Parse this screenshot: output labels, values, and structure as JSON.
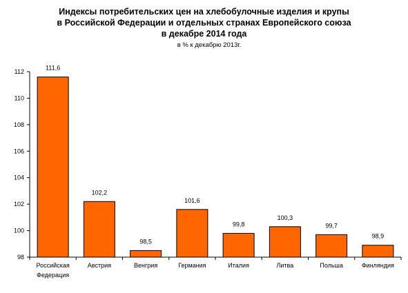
{
  "title_lines": [
    "Индексы потребительских цен на хлебобулочные изделия и крупы",
    "в Российской Федерации и отдельных странах Европейского союза",
    "в декабре 2014 года"
  ],
  "subtitle": "в % к декабрю 2013г.",
  "colors": {
    "bar": "#ff6600",
    "bar_stroke": "#000000",
    "axis": "#000000"
  },
  "chart_data": {
    "type": "bar",
    "title": "Индексы потребительских цен на хлебобулочные изделия и крупы в Российской Федерации и отдельных странах Европейского союза в декабре 2014 года",
    "subtitle": "в % к декабрю 2013г.",
    "categories": [
      [
        "Российская",
        "Федерация"
      ],
      [
        "Австрия"
      ],
      [
        "Венгрия"
      ],
      [
        "Германия"
      ],
      [
        "Италия"
      ],
      [
        "Литва"
      ],
      [
        "Польша"
      ],
      [
        "Финляндия"
      ]
    ],
    "values": [
      111.6,
      102.2,
      98.5,
      101.6,
      99.8,
      100.3,
      99.7,
      98.9
    ],
    "value_labels": [
      "111,6",
      "102,2",
      "98,5",
      "101,6",
      "99,8",
      "100,3",
      "99,7",
      "98,9"
    ],
    "ylim": [
      98,
      112
    ],
    "yticks": [
      98,
      100,
      102,
      104,
      106,
      108,
      110,
      112
    ],
    "grid": false,
    "legend": "none",
    "xlabel": "",
    "ylabel": ""
  }
}
